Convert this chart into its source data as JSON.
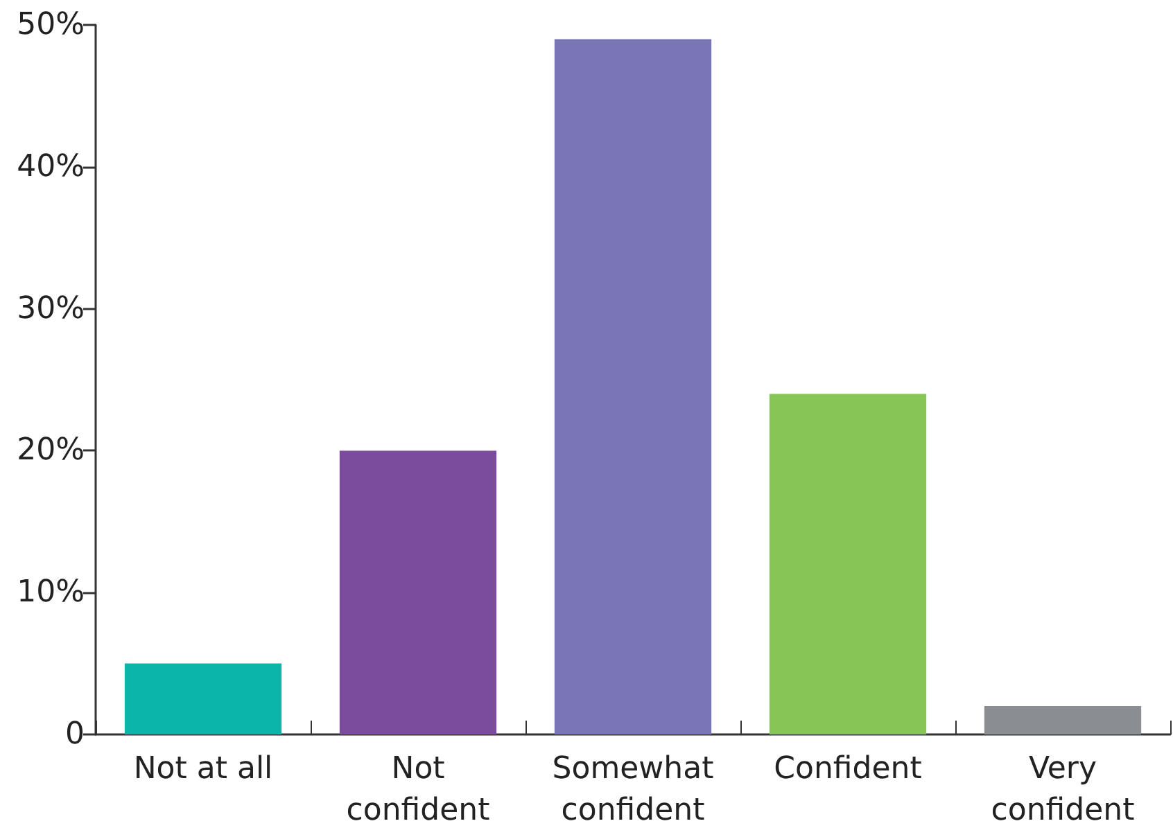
{
  "chart_data": {
    "type": "bar",
    "categories": [
      "Not at all",
      "Not\nconfident",
      "Somewhat\nconfident",
      "Confident",
      "Very\nconfident"
    ],
    "values": [
      5,
      20,
      49,
      24,
      2
    ],
    "colors": [
      "#0bb5a8",
      "#7b4b9e",
      "#7a76b6",
      "#85c657",
      "#8a8d91"
    ],
    "ylim": [
      0,
      50
    ],
    "yticks": [
      0,
      {
        "value": 10,
        "label": "10%"
      },
      {
        "value": 20,
        "label": "20%"
      },
      {
        "value": 30,
        "label": "30%"
      },
      {
        "value": 40,
        "label": "40%"
      },
      {
        "value": 50,
        "label": "50%"
      }
    ],
    "grid": false
  }
}
